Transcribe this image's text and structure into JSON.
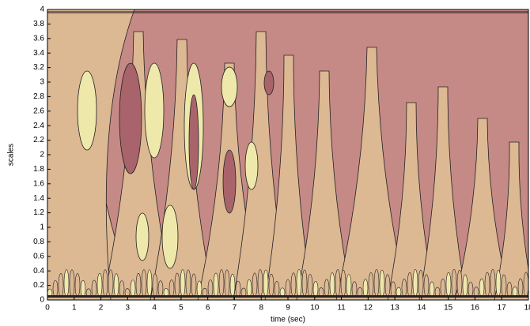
{
  "chart_data": {
    "type": "contour",
    "xlabel": "time (sec)",
    "ylabel": "scales",
    "xlim": [
      0,
      18
    ],
    "xticks": [
      0,
      1,
      2,
      3,
      4,
      5,
      6,
      7,
      8,
      9,
      10,
      11,
      12,
      13,
      14,
      15,
      16,
      17,
      18
    ],
    "ylim": [
      0,
      4
    ],
    "yticks": [
      0,
      0.2,
      0.4,
      0.6,
      0.8,
      1,
      1.2,
      1.4,
      1.6,
      1.8,
      2,
      2.2,
      2.4,
      2.6,
      2.8,
      3,
      3.2,
      3.4,
      3.6,
      3.8,
      4
    ],
    "colors": [
      "#c58a86",
      "#dcb893",
      "#efe8ab",
      "#a8646a"
    ]
  }
}
